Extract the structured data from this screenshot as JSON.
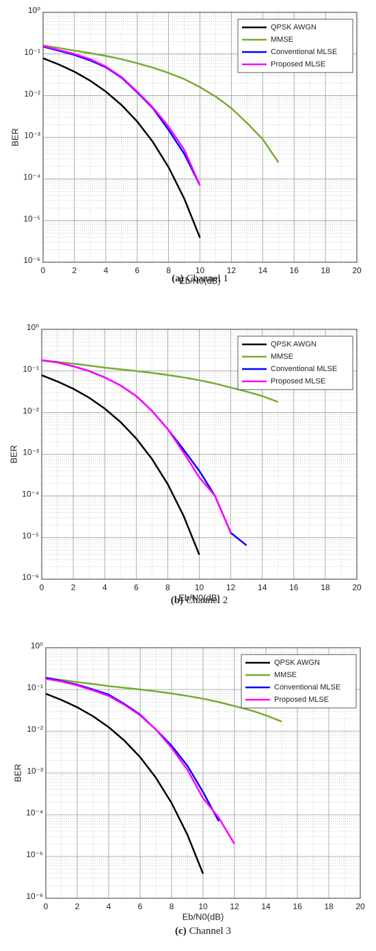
{
  "chart_data": [
    {
      "type": "line",
      "caption_label": "(a)",
      "caption": "Channel 1",
      "xlabel": "Eb/N0(dB)",
      "ylabel": "BER",
      "x": [
        0,
        1,
        2,
        3,
        4,
        5,
        6,
        7,
        8,
        9,
        10,
        11,
        12,
        13,
        14,
        15
      ],
      "xlim": [
        0,
        20
      ],
      "xticks": [
        0,
        2,
        4,
        6,
        8,
        10,
        12,
        14,
        16,
        18,
        20
      ],
      "ylim": [
        1e-06,
        1
      ],
      "log_y": true,
      "grid": true,
      "minor_grid": true,
      "legend": "northeast",
      "yticks": [
        {
          "value": 1e-06,
          "label": "10⁻⁶"
        },
        {
          "value": 1e-05,
          "label": "10⁻⁵"
        },
        {
          "value": 0.0001,
          "label": "10⁻⁴"
        },
        {
          "value": 0.001,
          "label": "10⁻³"
        },
        {
          "value": 0.01,
          "label": "10⁻²"
        },
        {
          "value": 0.1,
          "label": "10⁻¹"
        },
        {
          "value": 1,
          "label": "10⁰"
        }
      ],
      "series": [
        {
          "name": "QPSK AWGN",
          "color": "#000000",
          "values": [
            0.079,
            0.056,
            0.0375,
            0.0229,
            0.0125,
            0.00595,
            0.00239,
            0.00077,
            0.000191,
            3.36e-05,
            3.87e-06,
            null,
            null,
            null,
            null,
            null
          ]
        },
        {
          "name": "MMSE",
          "color": "#77ac30",
          "values": [
            0.16,
            0.14,
            0.12,
            0.105,
            0.09,
            0.075,
            0.06,
            0.047,
            0.035,
            0.025,
            0.016,
            0.0095,
            0.005,
            0.0022,
            0.0009,
            0.00025
          ]
        },
        {
          "name": "Conventional MLSE",
          "color": "#0000ff",
          "values": [
            0.15,
            0.12,
            0.095,
            0.07,
            0.048,
            0.027,
            0.012,
            0.005,
            0.0015,
            0.0004,
            7e-05,
            null,
            null,
            null,
            null,
            null
          ]
        },
        {
          "name": "Proposed MLSE",
          "color": "#ff00ff",
          "values": [
            0.155,
            0.125,
            0.1,
            0.075,
            0.05,
            0.028,
            0.0125,
            0.0052,
            0.0018,
            0.0005,
            7e-05,
            null,
            null,
            null,
            null,
            null
          ]
        }
      ]
    },
    {
      "type": "line",
      "caption_label": "(b)",
      "caption": "Channel 2",
      "xlabel": "Eb/N0(dB)",
      "ylabel": "BER",
      "x": [
        0,
        1,
        2,
        3,
        4,
        5,
        6,
        7,
        8,
        9,
        10,
        11,
        12,
        13,
        14,
        15
      ],
      "xlim": [
        0,
        20
      ],
      "xticks": [
        0,
        2,
        4,
        6,
        8,
        10,
        12,
        14,
        16,
        18,
        20
      ],
      "ylim": [
        1e-06,
        1
      ],
      "log_y": true,
      "grid": true,
      "minor_grid": true,
      "legend": "northeast",
      "yticks": [
        {
          "value": 1e-06,
          "label": "10⁻⁶"
        },
        {
          "value": 1e-05,
          "label": "10⁻⁵"
        },
        {
          "value": 0.0001,
          "label": "10⁻⁴"
        },
        {
          "value": 0.001,
          "label": "10⁻³"
        },
        {
          "value": 0.01,
          "label": "10⁻²"
        },
        {
          "value": 0.1,
          "label": "10⁻¹"
        },
        {
          "value": 1,
          "label": "10⁰"
        }
      ],
      "series": [
        {
          "name": "QPSK AWGN",
          "color": "#000000",
          "values": [
            0.079,
            0.056,
            0.0375,
            0.0229,
            0.0125,
            0.00595,
            0.00239,
            0.00077,
            0.000191,
            3.36e-05,
            3.87e-06,
            null,
            null,
            null,
            null,
            null
          ]
        },
        {
          "name": "MMSE",
          "color": "#77ac30",
          "values": [
            0.18,
            0.165,
            0.15,
            0.135,
            0.12,
            0.11,
            0.1,
            0.09,
            0.08,
            0.07,
            0.06,
            0.05,
            0.04,
            0.032,
            0.025,
            0.018
          ]
        },
        {
          "name": "Conventional MLSE",
          "color": "#0000ff",
          "values": [
            0.18,
            0.16,
            0.13,
            0.1,
            0.07,
            0.045,
            0.025,
            0.011,
            0.004,
            0.0013,
            0.0004,
            0.0001,
            1.3e-05,
            6.5e-06,
            null,
            null
          ]
        },
        {
          "name": "Proposed MLSE",
          "color": "#ff00ff",
          "values": [
            0.18,
            0.16,
            0.13,
            0.1,
            0.07,
            0.045,
            0.025,
            0.011,
            0.004,
            0.0011,
            0.00028,
            0.0001,
            1.3e-05,
            null,
            null,
            null
          ]
        }
      ]
    },
    {
      "type": "line",
      "caption_label": "(c)",
      "caption": "Channel 3",
      "xlabel": "Eb/N0(dB)",
      "ylabel": "BER",
      "x": [
        0,
        1,
        2,
        3,
        4,
        5,
        6,
        7,
        8,
        9,
        10,
        11,
        12,
        13,
        14,
        15
      ],
      "xlim": [
        0,
        20
      ],
      "xticks": [
        0,
        2,
        4,
        6,
        8,
        10,
        12,
        14,
        16,
        18,
        20
      ],
      "ylim": [
        1e-06,
        1
      ],
      "log_y": true,
      "grid": true,
      "minor_grid": true,
      "legend": "northeast",
      "yticks": [
        {
          "value": 1e-06,
          "label": "10⁻⁶"
        },
        {
          "value": 1e-05,
          "label": "10⁻⁵"
        },
        {
          "value": 0.0001,
          "label": "10⁻⁴"
        },
        {
          "value": 0.001,
          "label": "10⁻³"
        },
        {
          "value": 0.01,
          "label": "10⁻²"
        },
        {
          "value": 0.1,
          "label": "10⁻¹"
        },
        {
          "value": 1,
          "label": "10⁰"
        }
      ],
      "series": [
        {
          "name": "QPSK AWGN",
          "color": "#000000",
          "values": [
            0.079,
            0.056,
            0.0375,
            0.0229,
            0.0125,
            0.00595,
            0.00239,
            0.00077,
            0.000191,
            3.36e-05,
            3.87e-06,
            null,
            null,
            null,
            null,
            null
          ]
        },
        {
          "name": "MMSE",
          "color": "#77ac30",
          "values": [
            0.19,
            0.17,
            0.15,
            0.135,
            0.12,
            0.11,
            0.1,
            0.09,
            0.08,
            0.07,
            0.06,
            0.05,
            0.04,
            0.032,
            0.024,
            0.017
          ]
        },
        {
          "name": "Conventional MLSE",
          "color": "#0000ff",
          "values": [
            0.19,
            0.16,
            0.13,
            0.1,
            0.075,
            0.045,
            0.025,
            0.011,
            0.0045,
            0.0015,
            0.00035,
            7e-05,
            null,
            null,
            null,
            null
          ]
        },
        {
          "name": "Proposed MLSE",
          "color": "#ff00ff",
          "values": [
            0.18,
            0.155,
            0.125,
            0.095,
            0.07,
            0.043,
            0.024,
            0.011,
            0.004,
            0.0012,
            0.00025,
            8.5e-05,
            2e-05,
            null,
            null,
            null
          ]
        }
      ]
    }
  ]
}
